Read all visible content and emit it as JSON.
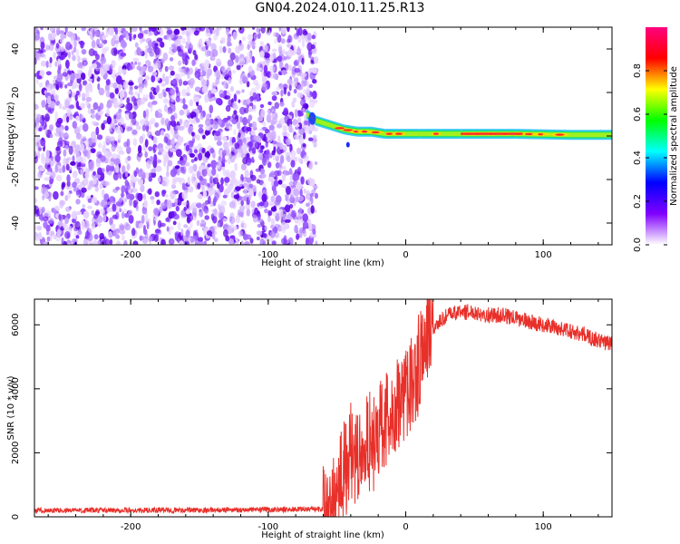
{
  "title": "GN04.2024.010.11.25.R13",
  "chart_data": [
    {
      "type": "heatmap",
      "xlabel": "Height of straight line (km)",
      "ylabel": "Frequency (Hz)",
      "xlim": [
        -270,
        150
      ],
      "ylim": [
        -50,
        50
      ],
      "xticks": [
        -200,
        -100,
        0,
        100
      ],
      "xtick_labels": [
        "-200",
        "-100",
        "0",
        "100"
      ],
      "yticks": [
        -40,
        -20,
        0,
        20,
        40
      ],
      "ytick_labels": [
        "-40",
        "-20",
        "0",
        "20",
        "40"
      ],
      "noise_region_x": [
        -270,
        -65
      ],
      "signal_band": {
        "x": [
          -72,
          -65,
          -55,
          -45,
          -35,
          -25,
          -15,
          -5,
          10,
          40,
          80,
          120,
          150
        ],
        "freq": [
          10,
          7,
          5,
          3,
          2,
          2,
          1,
          1,
          1,
          1,
          1,
          0.5,
          0.5
        ]
      },
      "colorbar": {
        "label": "Normalized spectral amplitude",
        "range": [
          0,
          1
        ],
        "ticks": [
          0,
          0.2,
          0.4,
          0.6,
          0.8
        ],
        "tick_labels": [
          "0.0",
          "0.2",
          "0.4",
          "0.6",
          "0.8"
        ],
        "colors": [
          "#ffffff",
          "#8000ff",
          "#0000ff",
          "#00ffff",
          "#00ff00",
          "#ffff00",
          "#ff0000",
          "#ff0080"
        ]
      },
      "grid": false
    },
    {
      "type": "line",
      "xlabel": "Height of straight line (km)",
      "ylabel": "SNR (10 * v/v)",
      "xlim": [
        -270,
        150
      ],
      "ylim": [
        0,
        6800
      ],
      "xticks": [
        -200,
        -100,
        0,
        100
      ],
      "xtick_labels": [
        "-200",
        "-100",
        "0",
        "100"
      ],
      "yticks": [
        0,
        2000,
        4000,
        6000
      ],
      "ytick_labels": [
        "0",
        "2000",
        "4000",
        "6000"
      ],
      "color": "#e8302a",
      "x": [
        -270,
        -200,
        -100,
        -60,
        -50,
        -45,
        -40,
        -35,
        -30,
        -25,
        -20,
        -15,
        -10,
        -5,
        0,
        5,
        10,
        15,
        20,
        25,
        30,
        40,
        50,
        60,
        70,
        80,
        90,
        100,
        110,
        120,
        130,
        140,
        150
      ],
      "y": [
        200,
        200,
        220,
        250,
        1100,
        1500,
        2100,
        2000,
        2400,
        2500,
        2800,
        3100,
        3400,
        3500,
        3900,
        4300,
        5000,
        5600,
        5900,
        6100,
        6300,
        6400,
        6400,
        6300,
        6300,
        6200,
        6100,
        6000,
        5900,
        5800,
        5700,
        5500,
        5400
      ],
      "grid": false
    }
  ]
}
